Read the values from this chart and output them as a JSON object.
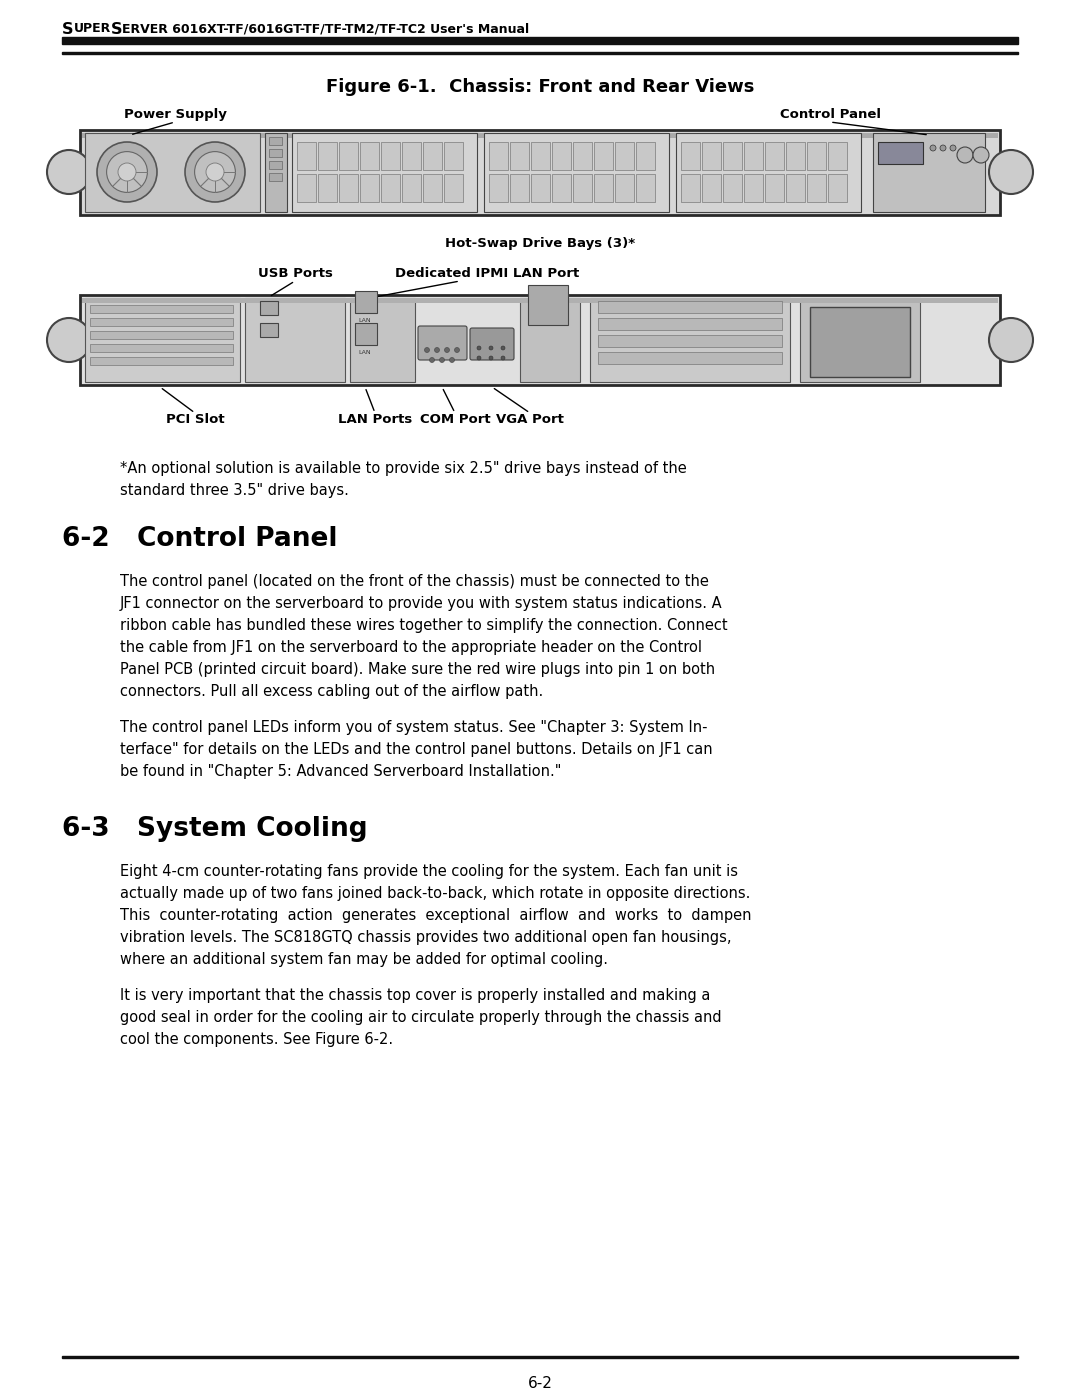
{
  "header_text_super": "S",
  "header_text_uper": "UPER",
  "header_text_server": "S",
  "header_text_erver": "ERVER 6016XT-TF/6016GT-TF/TF-TM2/TF-TC2 User's Manual",
  "header_full": "SUPERSERVER 6016XT-TF/6016GT-TF/TF-TM2/TF-TC2 User's Manual",
  "figure_title": "Figure 6-1.  Chassis: Front and Rear Views",
  "section_62_title": "6-2   Control Panel",
  "section_63_title": "6-3   System Cooling",
  "footer_text": "6-2",
  "label_power_supply": "Power Supply",
  "label_control_panel": "Control Panel",
  "label_hotswap": "Hot-Swap Drive Bays (3)*",
  "label_usb": "USB Ports",
  "label_ipmi": "Dedicated IPMI LAN Port",
  "label_pci": "PCI Slot",
  "label_lan": "LAN Ports",
  "label_com": "COM Port",
  "label_vga": "VGA Port",
  "footnote_line1": "*An optional solution is available to provide six 2.5\" drive bays instead of the",
  "footnote_line2": "standard three 3.5\" drive bays.",
  "para_62_1_lines": [
    "The control panel (located on the front of the chassis) must be connected to the",
    "JF1 connector on the serverboard to provide you with system status indications. A",
    "ribbon cable has bundled these wires together to simplify the connection. Connect",
    "the cable from JF1 on the serverboard to the appropriate header on the Control",
    "Panel PCB (printed circuit board). Make sure the red wire plugs into pin 1 on both",
    "connectors. Pull all excess cabling out of the airflow path."
  ],
  "para_62_2_lines": [
    "The control panel LEDs inform you of system status. See \"Chapter 3: System In-",
    "terface\" for details on the LEDs and the control panel buttons. Details on JF1 can",
    "be found in \"Chapter 5: Advanced Serverboard Installation.\""
  ],
  "para_63_1_lines": [
    "Eight 4-cm counter-rotating fans provide the cooling for the system. Each fan unit is",
    "actually made up of two fans joined back-to-back, which rotate in opposite directions.",
    "This  counter-rotating  action  generates  exceptional  airflow  and  works  to  dampen",
    "vibration levels. The SC818GTQ chassis provides two additional open fan housings,",
    "where an additional system fan may be added for optimal cooling."
  ],
  "para_63_2_lines": [
    "It is very important that the chassis top cover is properly installed and making a",
    "good seal in order for the cooling air to circulate properly through the chassis and",
    "cool the components. See Figure 6-2."
  ],
  "bg_color": "#ffffff",
  "text_color": "#000000"
}
